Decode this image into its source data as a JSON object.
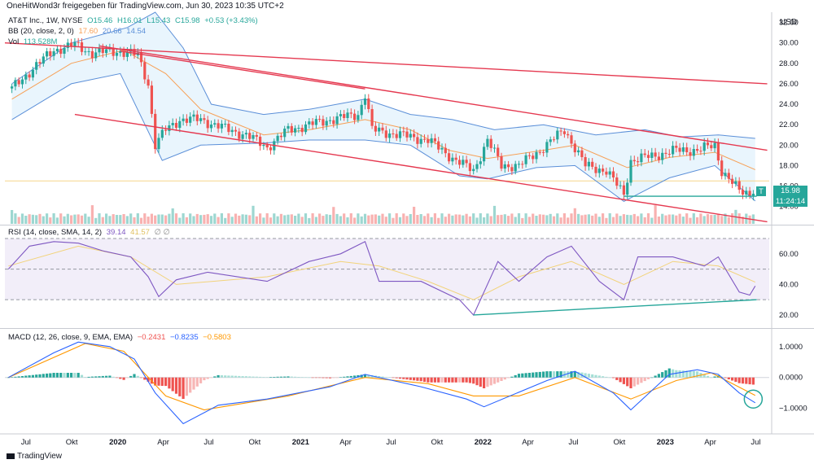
{
  "header": {
    "author_line": "OneHitWond3r freigegeben für TradingView.com, Jun 30, 2023 10:35 UTC+2",
    "currency": "USD",
    "footer_brand": "TradingView"
  },
  "legend": {
    "main": {
      "symbol": "AT&T Inc., 1W, NYSE",
      "o": "O15.46",
      "h": "H16.01",
      "l": "L15.43",
      "c": "C15.98",
      "chg": "+0.53 (+3.43%)"
    },
    "bb": {
      "label": "BB (20, close, 2, 0)",
      "v1": "17.60",
      "v2": "20.66",
      "v3": "14.54"
    },
    "vol": {
      "label": "Vol",
      "v": "113.528M"
    },
    "rsi": {
      "label": "RSI (14, close, SMA, 14, 2)",
      "v1": "39.14",
      "v2": "41.57",
      "extra": "∅ ∅"
    },
    "macd": {
      "label": "MACD (12, 26, close, 9, EMA, EMA)",
      "v1": "−0.2431",
      "v2": "−0.8235",
      "v3": "−0.5803"
    }
  },
  "price_tag": {
    "price": "15.98",
    "countdown": "11:24:14",
    "symbol_badge": "T"
  },
  "colors": {
    "up": "#26a69a",
    "down": "#ef5350",
    "bb_mid": "#f7a056",
    "bb_band": "#5b8fd8",
    "bb_fill": "#e3f2fd",
    "rsi": "#7e57c2",
    "rsi_ma": "#f2d37a",
    "rsi_bg": "#ede7f6",
    "macd": "#2962ff",
    "signal": "#ff9800",
    "trend_red": "#e53950",
    "trend_teal": "#26a69a"
  },
  "chart_data": [
    {
      "type": "candlestick",
      "title": "AT&T Inc., 1W, NYSE",
      "y_axis": {
        "ticks": [
          14.0,
          16.0,
          18.0,
          20.0,
          22.0,
          24.0,
          26.0,
          28.0,
          30.0,
          32.0
        ],
        "ylim": [
          12.3,
          33.0
        ]
      },
      "x_axis": {
        "ticks": [
          "Jul",
          "Okt",
          "2020",
          "Apr",
          "Jul",
          "Okt",
          "2021",
          "Apr",
          "Jul",
          "Okt",
          "2022",
          "Apr",
          "Jul",
          "Okt",
          "2023",
          "Apr",
          "Jul"
        ],
        "xlim": [
          "2019-05-20",
          "2023-07-28"
        ]
      },
      "price_path": [
        [
          "2019-06-03",
          25.5
        ],
        [
          "2019-07-15",
          27.5
        ],
        [
          "2019-08-26",
          29.3
        ],
        [
          "2019-10-07",
          29.8
        ],
        [
          "2019-11-11",
          29.0
        ],
        [
          "2019-12-30",
          29.2
        ],
        [
          "2020-02-10",
          28.8
        ],
        [
          "2020-03-02",
          26.0
        ],
        [
          "2020-03-16",
          20.0
        ],
        [
          "2020-04-06",
          21.5
        ],
        [
          "2020-05-04",
          22.5
        ],
        [
          "2020-06-15",
          22.5
        ],
        [
          "2020-08-10",
          21.5
        ],
        [
          "2020-09-14",
          21.0
        ],
        [
          "2020-10-26",
          19.8
        ],
        [
          "2020-12-07",
          21.5
        ],
        [
          "2021-01-18",
          22.0
        ],
        [
          "2021-03-01",
          22.5
        ],
        [
          "2021-04-26",
          23.0
        ],
        [
          "2021-05-10",
          25.0
        ],
        [
          "2021-05-24",
          21.5
        ],
        [
          "2021-07-19",
          21.0
        ],
        [
          "2021-09-13",
          20.5
        ],
        [
          "2021-11-08",
          18.5
        ],
        [
          "2021-12-13",
          17.5
        ],
        [
          "2022-01-10",
          20.5
        ],
        [
          "2022-02-07",
          18.0
        ],
        [
          "2022-03-14",
          18.0
        ],
        [
          "2022-04-25",
          19.5
        ],
        [
          "2022-06-13",
          21.5
        ],
        [
          "2022-07-25",
          18.0
        ],
        [
          "2022-09-05",
          17.5
        ],
        [
          "2022-10-10",
          15.2
        ],
        [
          "2022-10-24",
          18.5
        ],
        [
          "2022-12-12",
          19.0
        ],
        [
          "2023-01-23",
          19.5
        ],
        [
          "2023-03-06",
          19.5
        ],
        [
          "2023-04-10",
          20.0
        ],
        [
          "2023-04-24",
          17.5
        ],
        [
          "2023-05-29",
          15.5
        ],
        [
          "2023-06-19",
          15.3
        ],
        [
          "2023-06-30",
          15.98
        ]
      ],
      "bb_mid": [
        [
          "2019-06-03",
          24.5
        ],
        [
          "2019-09-30",
          28.0
        ],
        [
          "2020-01-13",
          29.3
        ],
        [
          "2020-04-06",
          27.0
        ],
        [
          "2020-06-15",
          23.5
        ],
        [
          "2020-10-19",
          21.0
        ],
        [
          "2021-01-18",
          21.5
        ],
        [
          "2021-05-10",
          22.5
        ],
        [
          "2021-08-09",
          21.5
        ],
        [
          "2021-10-25",
          19.5
        ],
        [
          "2022-01-10",
          18.7
        ],
        [
          "2022-05-02",
          19.5
        ],
        [
          "2022-07-04",
          20.0
        ],
        [
          "2022-10-17",
          17.8
        ],
        [
          "2023-01-09",
          18.8
        ],
        [
          "2023-04-10",
          19.3
        ],
        [
          "2023-06-30",
          17.6
        ]
      ],
      "bb_upper": [
        [
          "2019-06-03",
          26.0
        ],
        [
          "2019-09-30",
          30.0
        ],
        [
          "2020-01-20",
          31.5
        ],
        [
          "2020-03-16",
          33.0
        ],
        [
          "2020-05-11",
          29.5
        ],
        [
          "2020-07-06",
          24.0
        ],
        [
          "2020-10-19",
          23.0
        ],
        [
          "2021-01-18",
          23.5
        ],
        [
          "2021-05-10",
          24.5
        ],
        [
          "2021-08-09",
          23.0
        ],
        [
          "2021-11-01",
          22.5
        ],
        [
          "2022-01-24",
          21.5
        ],
        [
          "2022-05-02",
          22.0
        ],
        [
          "2022-08-15",
          21.0
        ],
        [
          "2022-11-21",
          21.5
        ],
        [
          "2023-01-30",
          20.8
        ],
        [
          "2023-04-17",
          21.0
        ],
        [
          "2023-06-30",
          20.66
        ]
      ],
      "bb_lower": [
        [
          "2019-06-03",
          22.5
        ],
        [
          "2019-09-30",
          26.0
        ],
        [
          "2020-01-06",
          27.0
        ],
        [
          "2020-03-30",
          18.5
        ],
        [
          "2020-06-15",
          20.0
        ],
        [
          "2020-10-19",
          20.2
        ],
        [
          "2021-01-18",
          20.5
        ],
        [
          "2021-05-10",
          20.5
        ],
        [
          "2021-08-09",
          20.0
        ],
        [
          "2021-11-15",
          17.0
        ],
        [
          "2022-01-10",
          16.7
        ],
        [
          "2022-04-18",
          17.8
        ],
        [
          "2022-07-04",
          18.0
        ],
        [
          "2022-10-10",
          14.5
        ],
        [
          "2023-01-09",
          16.8
        ],
        [
          "2023-04-10",
          18.0
        ],
        [
          "2023-06-30",
          14.54
        ]
      ],
      "trendlines": [
        {
          "color": "red",
          "from": [
            "2019-05-20",
            30.0
          ],
          "to": [
            "2023-07-24",
            26.0
          ]
        },
        {
          "color": "red",
          "from": [
            "2019-11-25",
            29.7
          ],
          "to": [
            "2023-07-24",
            19.5
          ]
        },
        {
          "color": "red",
          "from": [
            "2020-01-06",
            29.2
          ],
          "to": [
            "2021-05-10",
            25.5
          ]
        },
        {
          "color": "red",
          "from": [
            "2019-10-07",
            23.0
          ],
          "to": [
            "2023-07-24",
            12.5
          ]
        },
        {
          "color": "teal",
          "from": [
            "2022-10-10",
            15.0
          ],
          "to": [
            "2023-07-03",
            15.0
          ]
        }
      ],
      "reference_level": 16.5
    },
    {
      "type": "line",
      "title": "RSI (14, close, SMA, 14, 2)",
      "y_axis": {
        "ticks": [
          20.0,
          40.0,
          60.0
        ],
        "band": [
          30,
          70
        ],
        "midline": 50
      },
      "rsi_path": [
        [
          "2019-05-27",
          50
        ],
        [
          "2019-07-08",
          65
        ],
        [
          "2019-08-26",
          68
        ],
        [
          "2019-10-14",
          67
        ],
        [
          "2019-12-02",
          62
        ],
        [
          "2020-01-27",
          58
        ],
        [
          "2020-03-02",
          45
        ],
        [
          "2020-03-23",
          32
        ],
        [
          "2020-04-27",
          43
        ],
        [
          "2020-06-29",
          48
        ],
        [
          "2020-10-26",
          42
        ],
        [
          "2021-01-18",
          55
        ],
        [
          "2021-03-22",
          60
        ],
        [
          "2021-05-10",
          68
        ],
        [
          "2021-06-07",
          42
        ],
        [
          "2021-08-30",
          42
        ],
        [
          "2021-11-15",
          30
        ],
        [
          "2021-12-13",
          20
        ],
        [
          "2022-01-31",
          55
        ],
        [
          "2022-03-14",
          42
        ],
        [
          "2022-05-09",
          58
        ],
        [
          "2022-06-27",
          65
        ],
        [
          "2022-08-22",
          42
        ],
        [
          "2022-10-10",
          30
        ],
        [
          "2022-11-07",
          58
        ],
        [
          "2023-01-16",
          58
        ],
        [
          "2023-03-20",
          52
        ],
        [
          "2023-04-17",
          58
        ],
        [
          "2023-05-29",
          35
        ],
        [
          "2023-06-19",
          33
        ],
        [
          "2023-06-30",
          39
        ]
      ],
      "rsi_ma_path": [
        [
          "2019-05-27",
          52
        ],
        [
          "2019-10-14",
          65
        ],
        [
          "2020-01-27",
          58
        ],
        [
          "2020-04-27",
          40
        ],
        [
          "2020-10-26",
          45
        ],
        [
          "2021-03-22",
          55
        ],
        [
          "2021-06-07",
          52
        ],
        [
          "2021-09-13",
          42
        ],
        [
          "2021-12-13",
          30
        ],
        [
          "2022-03-14",
          45
        ],
        [
          "2022-06-27",
          55
        ],
        [
          "2022-10-10",
          40
        ],
        [
          "2023-01-16",
          55
        ],
        [
          "2023-04-17",
          52
        ],
        [
          "2023-06-30",
          41.5
        ]
      ],
      "trendline": {
        "from": [
          "2021-12-13",
          20
        ],
        "to": [
          "2023-07-03",
          30
        ]
      }
    },
    {
      "type": "macd",
      "title": "MACD (12, 26, close, 9, EMA, EMA)",
      "y_axis": {
        "ticks": [
          1.0,
          0.0,
          -1.0
        ]
      },
      "macd_path": [
        [
          "2019-05-27",
          0.0
        ],
        [
          "2019-08-26",
          0.8
        ],
        [
          "2019-10-14",
          1.15
        ],
        [
          "2019-12-16",
          1.0
        ],
        [
          "2020-02-03",
          0.6
        ],
        [
          "2020-03-16",
          -0.5
        ],
        [
          "2020-05-11",
          -1.5
        ],
        [
          "2020-07-20",
          -0.9
        ],
        [
          "2020-10-26",
          -0.7
        ],
        [
          "2021-03-01",
          -0.3
        ],
        [
          "2021-05-10",
          0.1
        ],
        [
          "2021-08-30",
          -0.3
        ],
        [
          "2021-11-29",
          -0.7
        ],
        [
          "2022-01-03",
          -0.95
        ],
        [
          "2022-05-09",
          -0.1
        ],
        [
          "2022-07-04",
          0.2
        ],
        [
          "2022-09-19",
          -0.5
        ],
        [
          "2022-10-24",
          -1.05
        ],
        [
          "2023-01-09",
          0.1
        ],
        [
          "2023-03-06",
          0.25
        ],
        [
          "2023-04-17",
          0.1
        ],
        [
          "2023-05-29",
          -0.5
        ],
        [
          "2023-06-30",
          -0.82
        ]
      ],
      "signal_path": [
        [
          "2019-05-27",
          0.0
        ],
        [
          "2019-10-28",
          1.1
        ],
        [
          "2020-01-13",
          0.85
        ],
        [
          "2020-04-06",
          -0.6
        ],
        [
          "2020-06-22",
          -1.05
        ],
        [
          "2020-12-07",
          -0.6
        ],
        [
          "2021-05-10",
          0.0
        ],
        [
          "2021-09-13",
          -0.2
        ],
        [
          "2021-12-13",
          -0.6
        ],
        [
          "2022-03-14",
          -0.6
        ],
        [
          "2022-07-04",
          0.0
        ],
        [
          "2022-10-24",
          -0.7
        ],
        [
          "2023-01-23",
          -0.1
        ],
        [
          "2023-04-03",
          0.15
        ],
        [
          "2023-06-30",
          -0.58
        ]
      ]
    }
  ]
}
